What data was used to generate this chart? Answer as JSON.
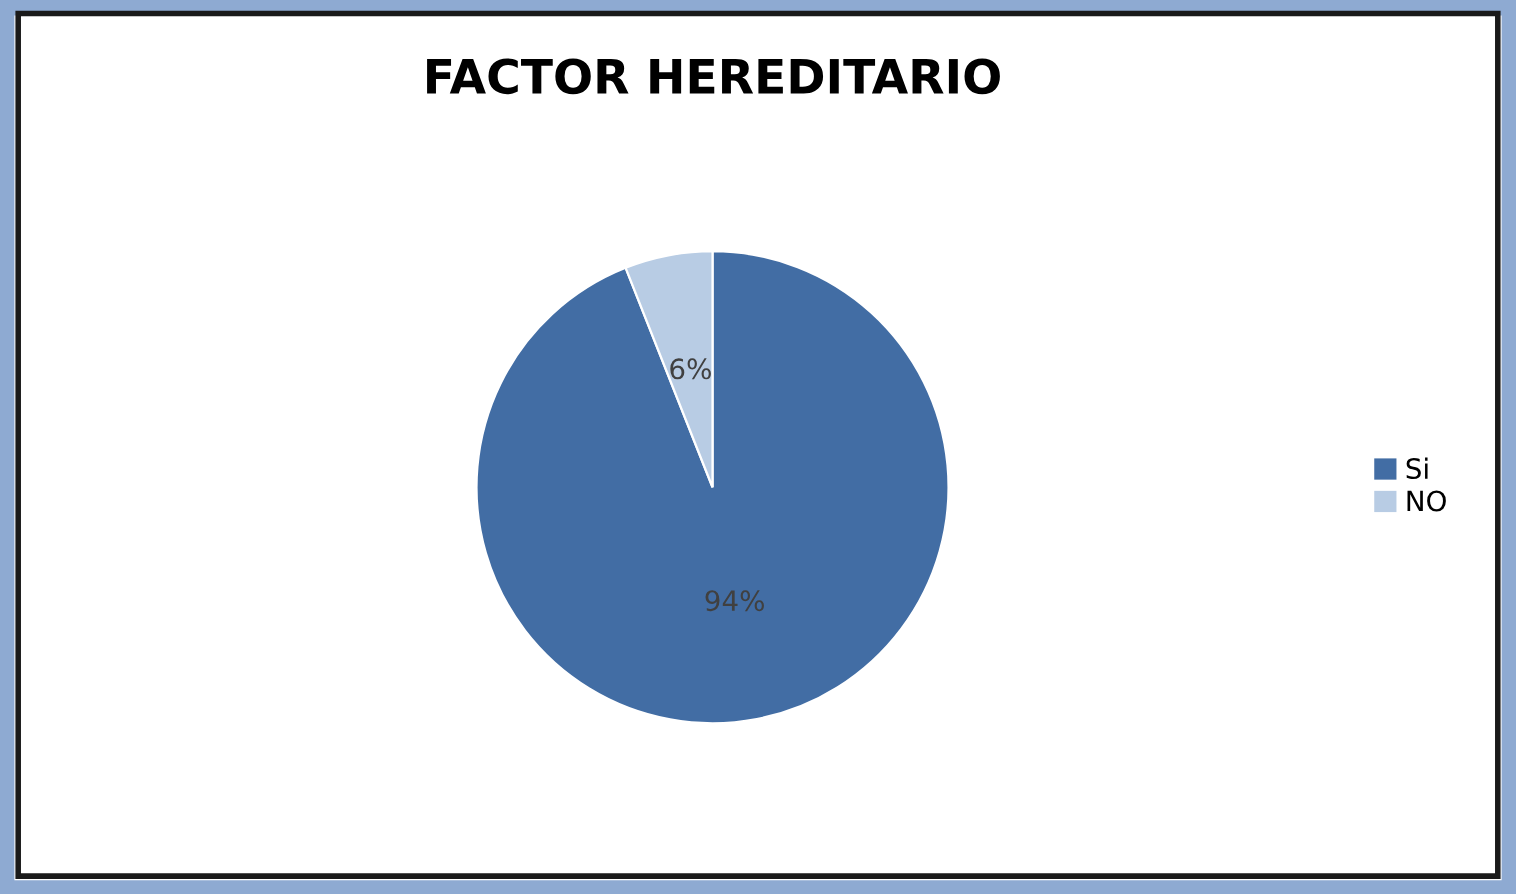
{
  "chart_data": {
    "type": "pie",
    "title": "FACTOR HEREDITARIO",
    "categories": [
      "Si",
      "NO"
    ],
    "values": [
      94,
      6
    ],
    "colors": [
      "#426da4",
      "#b8cce4"
    ],
    "value_labels": [
      "94%",
      "6%"
    ],
    "legend": "right"
  }
}
